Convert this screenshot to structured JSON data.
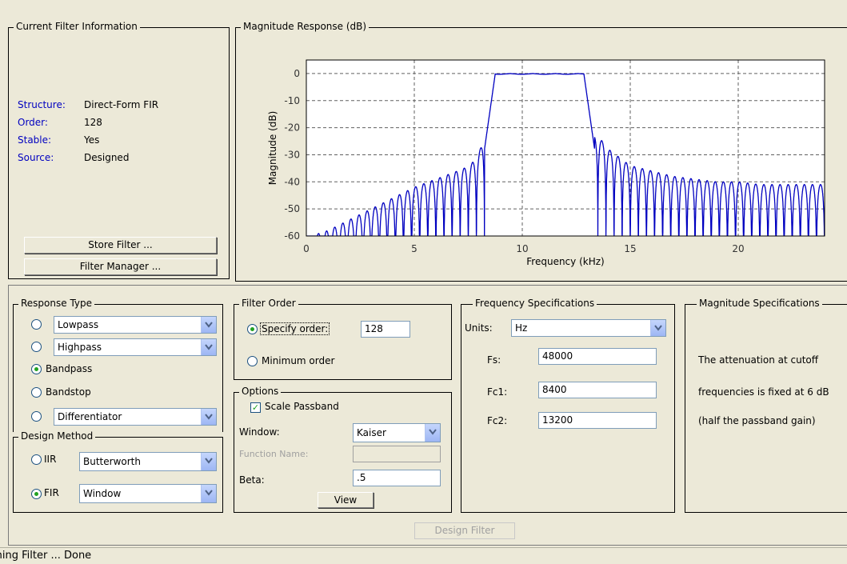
{
  "current_filter": {
    "title": "Current Filter Information",
    "rows": [
      {
        "label": "Structure:",
        "value": "Direct-Form FIR"
      },
      {
        "label": "Order:",
        "value": "128"
      },
      {
        "label": "Stable:",
        "value": "Yes"
      },
      {
        "label": "Source:",
        "value": "Designed"
      }
    ],
    "store_button": "Store Filter ...",
    "manager_button": "Filter Manager ..."
  },
  "magnitude_panel": {
    "title": "Magnitude Response (dB)"
  },
  "chart_data": {
    "type": "line",
    "title": "",
    "xlabel": "Frequency (kHz)",
    "ylabel": "Magnitude (dB)",
    "xlim": [
      0,
      24
    ],
    "ylim": [
      -60,
      5
    ],
    "x_ticks": [
      "0",
      "5",
      "10",
      "15",
      "20"
    ],
    "y_ticks": [
      "0",
      "-10",
      "-20",
      "-30",
      "-40",
      "-50",
      "-60"
    ],
    "grid": true,
    "series": [
      {
        "color": "#0000c0",
        "passband_khz": [
          8.4,
          13.2
        ],
        "passband_db": 0,
        "sidelobe_peaks_khz": [
          0.2,
          1.0,
          2.0,
          3.0,
          4.0,
          5.0,
          6.0,
          7.0,
          7.6,
          8.0,
          8.2,
          13.5,
          14.0,
          15.0,
          16.0,
          17.0,
          18.0,
          19.0,
          20.0,
          21.0,
          22.0,
          23.0,
          24.0
        ],
        "sidelobe_peaks_db": [
          -60,
          -58,
          -54,
          -50,
          -46,
          -42,
          -39,
          -36,
          -34,
          -29,
          -25,
          -23,
          -28,
          -34,
          -36,
          -38,
          -39,
          -40,
          -40,
          -41,
          -41,
          -41,
          -41
        ]
      }
    ]
  },
  "response_type": {
    "title": "Response Type",
    "options": [
      {
        "label": "Lowpass",
        "selected": false
      },
      {
        "label": "Highpass",
        "selected": false
      },
      {
        "label": "Bandpass",
        "selected": true
      },
      {
        "label": "Bandstop",
        "selected": false
      },
      {
        "label": "Differentiator",
        "selected": false
      }
    ]
  },
  "design_method": {
    "title": "Design Method",
    "iir_label": "IIR",
    "iir_value": "Butterworth",
    "fir_label": "FIR",
    "fir_value": "Window",
    "fir_selected": true
  },
  "filter_order": {
    "title": "Filter Order",
    "specify_label": "Specify order:",
    "specify_value": "128",
    "minimum_label": "Minimum order"
  },
  "options": {
    "title": "Options",
    "scale_label": "Scale Passband",
    "scale_checked": true,
    "window_label": "Window:",
    "window_value": "Kaiser",
    "function_label": "Function Name:",
    "beta_label": "Beta:",
    "beta_value": ".5",
    "view_button": "View"
  },
  "frequency_specs": {
    "title": "Frequency Specifications",
    "units_label": "Units:",
    "units_value": "Hz",
    "fs_label": "Fs:",
    "fs_value": "48000",
    "fc1_label": "Fc1:",
    "fc1_value": "8400",
    "fc2_label": "Fc2:",
    "fc2_value": "13200"
  },
  "magnitude_specs": {
    "title": "Magnitude Specifications",
    "line1": "The attenuation at cutoff",
    "line2": "frequencies is fixed at 6 dB",
    "line3": "(half the passband gain)"
  },
  "design_button": "Design Filter",
  "status": "Designing Filter ... Done"
}
